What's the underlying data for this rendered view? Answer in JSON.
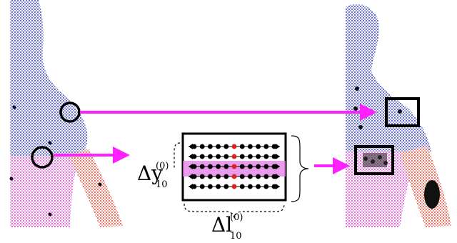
{
  "labels": {
    "delta_y": {
      "main": "Δy",
      "sub": "10",
      "sup": "(0)"
    },
    "delta_l": {
      "main": "Δl",
      "sub": "10",
      "sup": "(0)"
    }
  },
  "colors": {
    "upper_body": "#2f3fb8",
    "lower_left": "#d640d0",
    "arm": "#e0442e",
    "arrow": "#ff22ff",
    "highlight_band": "#e27ae6",
    "outline": "#000000",
    "marker_dot": "#e02020"
  },
  "grid": {
    "rows": 5,
    "dots_per_row": 11,
    "highlighted_row": 3
  }
}
